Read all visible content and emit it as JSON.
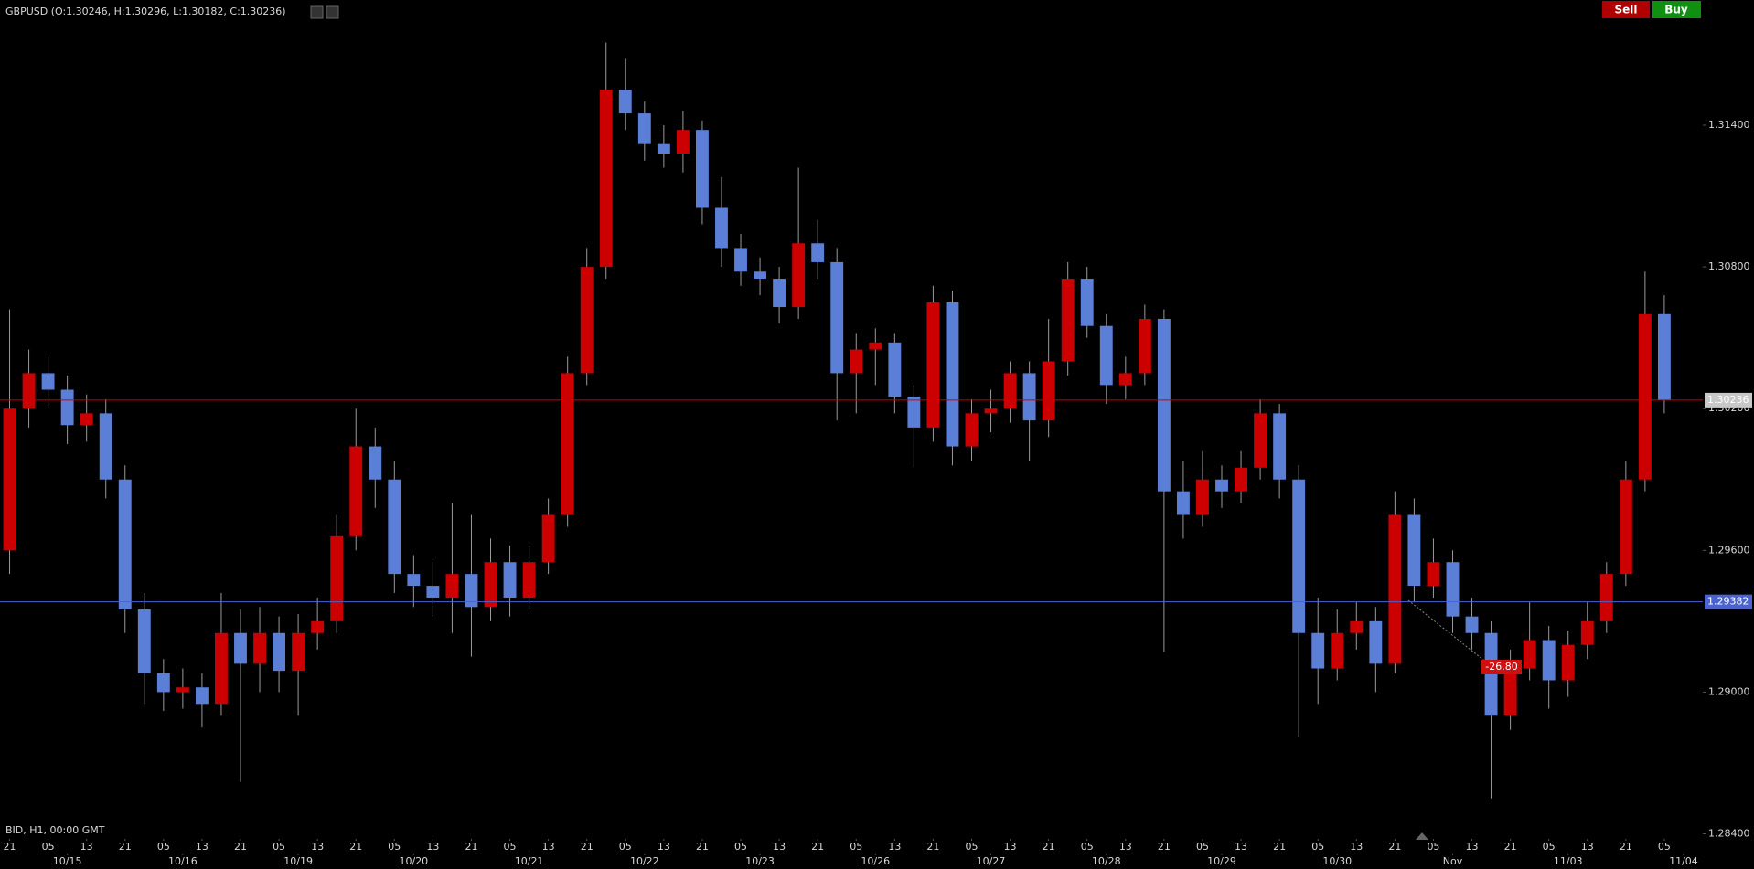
{
  "header": {
    "title": "GBPUSD (O:1.30246, H:1.30296, L:1.30182, C:1.30236)",
    "sell": "Sell",
    "buy": "Buy"
  },
  "chart_data": {
    "type": "candlestick",
    "footer": "BID, H1, 00:00 GMT",
    "up_color": "#cc0000",
    "down_color": "#5b7fd6",
    "xlim": [
      -2,
      352
    ],
    "ylim": [
      1.2834,
      1.3193
    ],
    "yticks": [
      {
        "value": 1.284,
        "label": "1.28400"
      },
      {
        "value": 1.29,
        "label": "1.29000"
      },
      {
        "value": 1.296,
        "label": "1.29600"
      },
      {
        "value": 1.302,
        "label": "1.30200"
      },
      {
        "value": 1.308,
        "label": "1.30800"
      },
      {
        "value": 1.314,
        "label": "1.31400"
      }
    ],
    "xticks": [
      {
        "value": 0,
        "label": "21"
      },
      {
        "value": 8,
        "label": "05"
      },
      {
        "value": 16,
        "label": "13"
      },
      {
        "value": 24,
        "label": "21"
      },
      {
        "value": 32,
        "label": "05"
      },
      {
        "value": 40,
        "label": "13"
      },
      {
        "value": 48,
        "label": "21"
      },
      {
        "value": 56,
        "label": "05"
      },
      {
        "value": 64,
        "label": "13"
      },
      {
        "value": 72,
        "label": "21"
      },
      {
        "value": 80,
        "label": "05"
      },
      {
        "value": 88,
        "label": "13"
      },
      {
        "value": 96,
        "label": "21"
      },
      {
        "value": 104,
        "label": "05"
      },
      {
        "value": 112,
        "label": "13"
      },
      {
        "value": 120,
        "label": "21"
      },
      {
        "value": 128,
        "label": "05"
      },
      {
        "value": 136,
        "label": "13"
      },
      {
        "value": 144,
        "label": "21"
      },
      {
        "value": 152,
        "label": "05"
      },
      {
        "value": 160,
        "label": "13"
      },
      {
        "value": 168,
        "label": "21"
      },
      {
        "value": 176,
        "label": "05"
      },
      {
        "value": 184,
        "label": "13"
      },
      {
        "value": 192,
        "label": "21"
      },
      {
        "value": 200,
        "label": "05"
      },
      {
        "value": 208,
        "label": "13"
      },
      {
        "value": 216,
        "label": "21"
      },
      {
        "value": 224,
        "label": "05"
      },
      {
        "value": 232,
        "label": "13"
      },
      {
        "value": 240,
        "label": "21"
      },
      {
        "value": 248,
        "label": "05"
      },
      {
        "value": 256,
        "label": "13"
      },
      {
        "value": 264,
        "label": "21"
      },
      {
        "value": 272,
        "label": "05"
      },
      {
        "value": 280,
        "label": "13"
      },
      {
        "value": 288,
        "label": "21"
      },
      {
        "value": 296,
        "label": "05"
      },
      {
        "value": 304,
        "label": "13"
      },
      {
        "value": 312,
        "label": "21"
      },
      {
        "value": 320,
        "label": "05"
      },
      {
        "value": 328,
        "label": "13"
      },
      {
        "value": 336,
        "label": "21"
      },
      {
        "value": 344,
        "label": "05"
      }
    ],
    "date_ticks": [
      {
        "value": 12,
        "label": "10/15"
      },
      {
        "value": 36,
        "label": "10/16"
      },
      {
        "value": 60,
        "label": "10/19"
      },
      {
        "value": 84,
        "label": "10/20"
      },
      {
        "value": 108,
        "label": "10/21"
      },
      {
        "value": 132,
        "label": "10/22"
      },
      {
        "value": 156,
        "label": "10/23"
      },
      {
        "value": 180,
        "label": "10/26"
      },
      {
        "value": 204,
        "label": "10/27"
      },
      {
        "value": 228,
        "label": "10/28"
      },
      {
        "value": 252,
        "label": "10/29"
      },
      {
        "value": 276,
        "label": "10/30"
      },
      {
        "value": 300,
        "label": "Nov"
      },
      {
        "value": 324,
        "label": "11/03"
      },
      {
        "value": 348,
        "label": "11/04"
      }
    ],
    "lines": [
      {
        "value": 1.30236,
        "label": "1.30236",
        "color": "#cc0000",
        "box": "#c8c8c8"
      },
      {
        "value": 1.29382,
        "label": "1.29382",
        "color": "#4a63d0",
        "box": "#4a63d0"
      }
    ],
    "annotation": "-26.80",
    "x": [
      0,
      4,
      8,
      12,
      16,
      20,
      24,
      28,
      32,
      36,
      40,
      44,
      48,
      52,
      56,
      60,
      64,
      68,
      72,
      76,
      80,
      84,
      88,
      92,
      96,
      100,
      104,
      108,
      112,
      116,
      120,
      124,
      128,
      132,
      136,
      140,
      144,
      148,
      152,
      156,
      160,
      164,
      168,
      172,
      176,
      180,
      184,
      188,
      192,
      196,
      200,
      204,
      208,
      212,
      216,
      220,
      224,
      228,
      232,
      236,
      240,
      244,
      248,
      252,
      256,
      260,
      264,
      268,
      272,
      276,
      280,
      284,
      288,
      292,
      296,
      300,
      304,
      308,
      312,
      316,
      320,
      324,
      328,
      332,
      336,
      340,
      344
    ],
    "candles": [
      [
        1.296,
        1.3062,
        1.295,
        1.302
      ],
      [
        1.302,
        1.3045,
        1.3012,
        1.3035
      ],
      [
        1.3035,
        1.3042,
        1.302,
        1.3028
      ],
      [
        1.3028,
        1.3034,
        1.3005,
        1.3013
      ],
      [
        1.3013,
        1.3026,
        1.3006,
        1.3018
      ],
      [
        1.3018,
        1.3024,
        1.2982,
        1.299
      ],
      [
        1.299,
        1.2996,
        1.2925,
        1.2935
      ],
      [
        1.2935,
        1.2942,
        1.2895,
        1.2908
      ],
      [
        1.2908,
        1.2914,
        1.2892,
        1.29
      ],
      [
        1.29,
        1.291,
        1.2893,
        1.2902
      ],
      [
        1.2902,
        1.2908,
        1.2885,
        1.2895
      ],
      [
        1.2895,
        1.2942,
        1.289,
        1.2925
      ],
      [
        1.2925,
        1.2935,
        1.2862,
        1.2912
      ],
      [
        1.2912,
        1.2936,
        1.29,
        1.2925
      ],
      [
        1.2925,
        1.2932,
        1.29,
        1.2909
      ],
      [
        1.2909,
        1.2933,
        1.289,
        1.2925
      ],
      [
        1.2925,
        1.294,
        1.2918,
        1.293
      ],
      [
        1.293,
        1.2975,
        1.2925,
        1.2966
      ],
      [
        1.2966,
        1.302,
        1.296,
        1.3004
      ],
      [
        1.3004,
        1.3012,
        1.2978,
        1.299
      ],
      [
        1.299,
        1.2998,
        1.2942,
        1.295
      ],
      [
        1.295,
        1.2958,
        1.2936,
        1.2945
      ],
      [
        1.2945,
        1.2955,
        1.2932,
        1.294
      ],
      [
        1.294,
        1.298,
        1.2925,
        1.295
      ],
      [
        1.295,
        1.2975,
        1.2915,
        1.2936
      ],
      [
        1.2936,
        1.2965,
        1.293,
        1.2955
      ],
      [
        1.2955,
        1.2962,
        1.2932,
        1.294
      ],
      [
        1.294,
        1.2962,
        1.2935,
        1.2955
      ],
      [
        1.2955,
        1.2982,
        1.295,
        1.2975
      ],
      [
        1.2975,
        1.3042,
        1.297,
        1.3035
      ],
      [
        1.3035,
        1.3088,
        1.303,
        1.308
      ],
      [
        1.308,
        1.3175,
        1.3075,
        1.3155
      ],
      [
        1.3155,
        1.3168,
        1.3138,
        1.3145
      ],
      [
        1.3145,
        1.315,
        1.3125,
        1.3132
      ],
      [
        1.3132,
        1.314,
        1.3122,
        1.3128
      ],
      [
        1.3128,
        1.3146,
        1.312,
        1.3138
      ],
      [
        1.3138,
        1.3142,
        1.3098,
        1.3105
      ],
      [
        1.3105,
        1.3118,
        1.308,
        1.3088
      ],
      [
        1.3088,
        1.3094,
        1.3072,
        1.3078
      ],
      [
        1.3078,
        1.3084,
        1.3068,
        1.3075
      ],
      [
        1.3075,
        1.308,
        1.3056,
        1.3063
      ],
      [
        1.3063,
        1.3122,
        1.3058,
        1.309
      ],
      [
        1.309,
        1.31,
        1.3075,
        1.3082
      ],
      [
        1.3082,
        1.3088,
        1.3015,
        1.3035
      ],
      [
        1.3035,
        1.3052,
        1.3018,
        1.3045
      ],
      [
        1.3045,
        1.3054,
        1.303,
        1.3048
      ],
      [
        1.3048,
        1.3052,
        1.3018,
        1.3025
      ],
      [
        1.3025,
        1.303,
        1.2995,
        1.3012
      ],
      [
        1.3012,
        1.3072,
        1.3006,
        1.3065
      ],
      [
        1.3065,
        1.307,
        1.2996,
        1.3004
      ],
      [
        1.3004,
        1.3024,
        1.2998,
        1.3018
      ],
      [
        1.3018,
        1.3028,
        1.301,
        1.302
      ],
      [
        1.302,
        1.304,
        1.3014,
        1.3035
      ],
      [
        1.3035,
        1.304,
        1.2998,
        1.3015
      ],
      [
        1.3015,
        1.3058,
        1.3008,
        1.304
      ],
      [
        1.304,
        1.3082,
        1.3034,
        1.3075
      ],
      [
        1.3075,
        1.308,
        1.305,
        1.3055
      ],
      [
        1.3055,
        1.306,
        1.3022,
        1.303
      ],
      [
        1.303,
        1.3042,
        1.3024,
        1.3035
      ],
      [
        1.3035,
        1.3064,
        1.303,
        1.3058
      ],
      [
        1.3058,
        1.3062,
        1.2917,
        1.2985
      ],
      [
        1.2985,
        1.2998,
        1.2965,
        1.2975
      ],
      [
        1.2975,
        1.3002,
        1.297,
        1.299
      ],
      [
        1.299,
        1.2996,
        1.2978,
        1.2985
      ],
      [
        1.2985,
        1.3002,
        1.298,
        1.2995
      ],
      [
        1.2995,
        1.3024,
        1.299,
        1.3018
      ],
      [
        1.3018,
        1.3022,
        1.2982,
        1.299
      ],
      [
        1.299,
        1.2996,
        1.2881,
        1.2925
      ],
      [
        1.2925,
        1.294,
        1.2895,
        1.291
      ],
      [
        1.291,
        1.2935,
        1.2905,
        1.2925
      ],
      [
        1.2925,
        1.2938,
        1.2918,
        1.293
      ],
      [
        1.293,
        1.2936,
        1.29,
        1.2912
      ],
      [
        1.2912,
        1.2985,
        1.2908,
        1.2975
      ],
      [
        1.2975,
        1.2982,
        1.2938,
        1.2945
      ],
      [
        1.2945,
        1.2965,
        1.294,
        1.2955
      ],
      [
        1.2955,
        1.296,
        1.2925,
        1.2932
      ],
      [
        1.2932,
        1.294,
        1.2918,
        1.2925
      ],
      [
        1.2925,
        1.293,
        1.2855,
        1.289
      ],
      [
        1.289,
        1.2918,
        1.2884,
        1.291
      ],
      [
        1.291,
        1.2938,
        1.2905,
        1.2922
      ],
      [
        1.2922,
        1.2928,
        1.2893,
        1.2905
      ],
      [
        1.2905,
        1.2926,
        1.2898,
        1.292
      ],
      [
        1.292,
        1.2938,
        1.2914,
        1.293
      ],
      [
        1.293,
        1.2955,
        1.2925,
        1.295
      ],
      [
        1.295,
        1.2998,
        1.2945,
        1.299
      ],
      [
        1.299,
        1.3078,
        1.2985,
        1.306
      ],
      [
        1.306,
        1.3068,
        1.3018,
        1.30236
      ]
    ]
  }
}
